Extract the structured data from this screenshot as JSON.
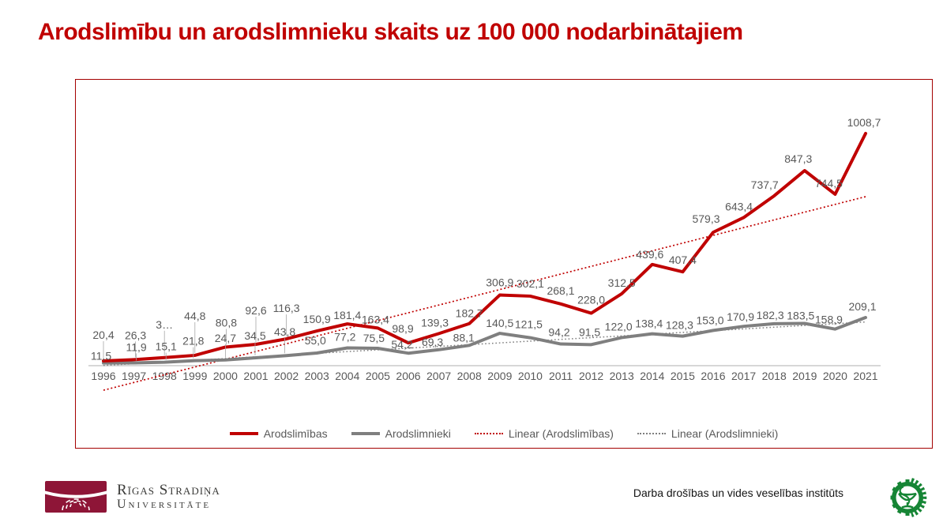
{
  "page_title": "Arodslimību un arodslimnieku skaits uz 100 000 nodarbinātajiem",
  "chart_data": {
    "type": "line",
    "title": "",
    "xlabel": "",
    "ylabel": "",
    "categories": [
      "1996",
      "1997",
      "1998",
      "1999",
      "2000",
      "2001",
      "2002",
      "2003",
      "2004",
      "2005",
      "2006",
      "2007",
      "2008",
      "2009",
      "2010",
      "2011",
      "2012",
      "2013",
      "2014",
      "2015",
      "2016",
      "2017",
      "2018",
      "2019",
      "2020",
      "2021"
    ],
    "series": [
      {
        "name": "Arodslimības",
        "color": "#C00000",
        "values": [
          20.4,
          26.3,
          35,
          44.8,
          80.8,
          92.6,
          116.3,
          150.9,
          181.4,
          163.4,
          98.9,
          139.3,
          182.7,
          306.9,
          302.1,
          268.1,
          228.0,
          312.5,
          439.6,
          407.4,
          579.3,
          643.4,
          737.7,
          847.3,
          744.5,
          1008.7
        ],
        "labels": [
          "20,4",
          "26,3",
          "3…",
          "44,8",
          "80,8",
          "92,6",
          "116,3",
          "150,9",
          "181,4",
          "163,4",
          "98,9",
          "139,3",
          "182,7",
          "306,9",
          "302,1",
          "268,1",
          "228,0",
          "312,5",
          "439,6",
          "407,4",
          "579,3",
          "643,4",
          "737,7",
          "847,3",
          "744,5",
          "1008,7"
        ]
      },
      {
        "name": "Arodslimnieki",
        "color": "#7F7F7F",
        "values": [
          11.5,
          11.9,
          15.1,
          21.8,
          24.7,
          34.5,
          43.8,
          55.0,
          77.2,
          75.5,
          54.2,
          69.3,
          88.1,
          140.5,
          121.5,
          94.2,
          91.5,
          122.0,
          138.4,
          128.3,
          153.0,
          170.9,
          182.3,
          183.5,
          158.9,
          209.1
        ],
        "labels": [
          "11,5",
          "11,9",
          "15,1",
          "21,8",
          "24,7",
          "34,5",
          "43,8",
          "55,0",
          "77,2",
          "75,5",
          "54,2",
          "69,3",
          "88,1",
          "140,5",
          "121,5",
          "94,2",
          "91,5",
          "122,0",
          "138,4",
          "128,3",
          "153,0",
          "170,9",
          "182,3",
          "183,5",
          "158,9",
          "209,1"
        ]
      }
    ],
    "trendlines": [
      {
        "name": "Linear (Arodslimības)",
        "series": "Arodslimības",
        "color": "#C00000",
        "style": "dotted"
      },
      {
        "name": "Linear (Arodslimnieki)",
        "series": "Arodslimnieki",
        "color": "#7F7F7F",
        "style": "dotted"
      }
    ],
    "legend_position": "bottom",
    "grid": false,
    "axis_line_color": "#BFBFBF",
    "tick_label_color": "#595959",
    "data_label_color": "#595959",
    "ylim_implied": [
      -110,
      1100
    ]
  },
  "legend": {
    "items": [
      {
        "label": "Arodslimības",
        "style": "solid",
        "color": "#C00000"
      },
      {
        "label": "Arodslimnieki",
        "style": "solid",
        "color": "#7F7F7F"
      },
      {
        "label": "Linear (Arodslimības)",
        "style": "dotted",
        "color": "#C00000"
      },
      {
        "label": "Linear (Arodslimnieki)",
        "style": "dotted",
        "color": "#7F7F7F"
      }
    ]
  },
  "footer": {
    "rsu_name_line1": "Rīgas Stradiņa",
    "rsu_name_line2": "Universitāte",
    "institute_name": "Darba drošības un vides veselības institūts",
    "rsu_brand_color": "#8E1537",
    "institute_logo_color": "#168535"
  }
}
